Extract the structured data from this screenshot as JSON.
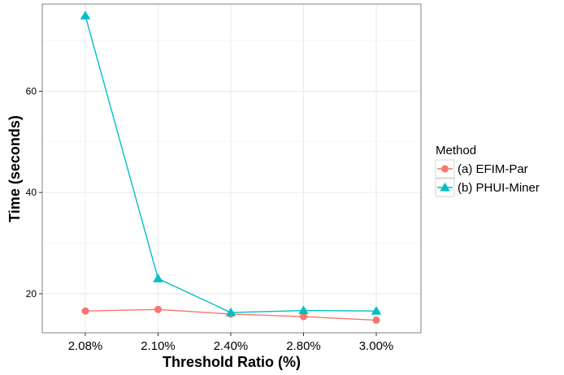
{
  "chart_data": {
    "type": "line",
    "title": "",
    "xlabel": "Threshold Ratio (%)",
    "ylabel": "Time (seconds)",
    "categories": [
      "2.08%",
      "2.10%",
      "2.40%",
      "2.80%",
      "3.00%"
    ],
    "ylim": [
      12.3,
      77.2
    ],
    "yticks": [
      20,
      40,
      60
    ],
    "grid": true,
    "legend": {
      "title": "Method",
      "placement": "right"
    },
    "series": [
      {
        "name": "(a) EFIM-Par",
        "values": [
          16.6,
          16.9,
          16.0,
          15.5,
          14.8
        ],
        "color": "#f8766d",
        "marker": "circle"
      },
      {
        "name": "(b) PHUI-Miner",
        "values": [
          74.9,
          23.0,
          16.3,
          16.7,
          16.6
        ],
        "color": "#00bfc4",
        "marker": "triangle"
      }
    ]
  }
}
